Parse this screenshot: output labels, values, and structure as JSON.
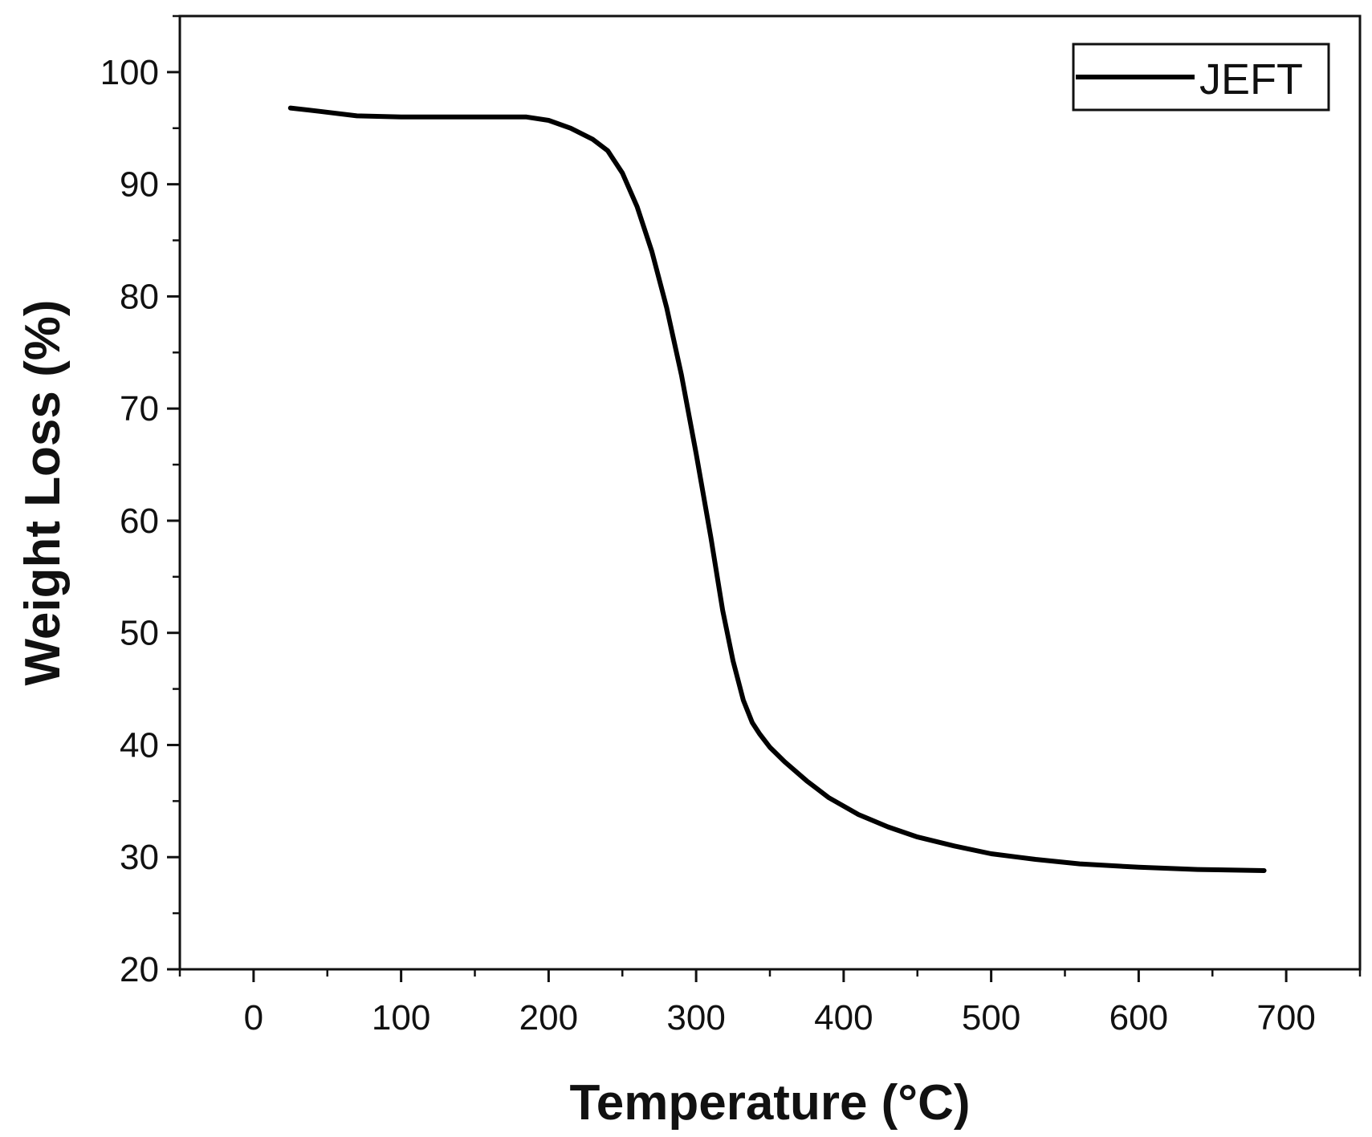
{
  "chart_data": {
    "type": "line",
    "title": "",
    "xlabel": "Temperature (°C)",
    "ylabel": "Weight Loss (%)",
    "xlim": [
      -50,
      750
    ],
    "ylim": [
      20,
      105
    ],
    "xticks": [
      "0",
      "100",
      "200",
      "300",
      "400",
      "500",
      "600",
      "700"
    ],
    "yticks": [
      "20",
      "30",
      "40",
      "50",
      "60",
      "70",
      "80",
      "90",
      "100"
    ],
    "legend_position": "top-right",
    "grid": false,
    "series": [
      {
        "name": "JEFT",
        "color": "#000000",
        "x": [
          25,
          45,
          70,
          100,
          150,
          185,
          200,
          215,
          230,
          240,
          250,
          260,
          270,
          280,
          290,
          300,
          310,
          318,
          325,
          332,
          338,
          343,
          350,
          360,
          375,
          390,
          410,
          430,
          450,
          475,
          500,
          530,
          560,
          600,
          640,
          685
        ],
        "y": [
          96.8,
          96.5,
          96.1,
          96.0,
          96.0,
          96.0,
          95.7,
          95.0,
          94.0,
          93.0,
          91.0,
          88.0,
          84.0,
          79.0,
          73.0,
          66.0,
          58.5,
          52.0,
          47.5,
          44.0,
          42.0,
          41.0,
          39.8,
          38.5,
          36.8,
          35.3,
          33.8,
          32.7,
          31.8,
          31.0,
          30.3,
          29.8,
          29.4,
          29.1,
          28.9,
          28.8
        ]
      }
    ]
  }
}
